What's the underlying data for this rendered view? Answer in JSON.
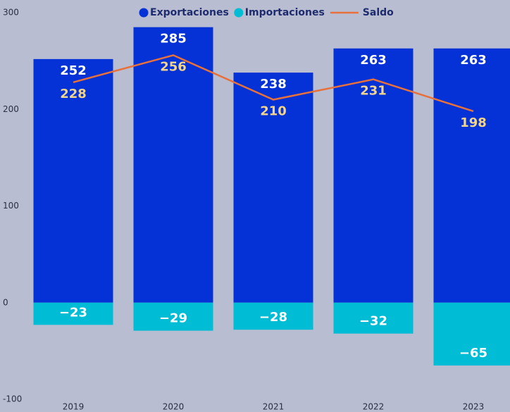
{
  "chart_data": {
    "type": "bar",
    "categories": [
      "2019",
      "2020",
      "2021",
      "2022",
      "2023"
    ],
    "series": [
      {
        "name": "Exportaciones",
        "type": "bar",
        "color": "#0432d6",
        "values": [
          252,
          285,
          238,
          263,
          263
        ]
      },
      {
        "name": "Importaciones",
        "type": "bar",
        "color": "#00bcd4",
        "values": [
          -23,
          -29,
          -28,
          -32,
          -65
        ],
        "value_labels": [
          "−23",
          "−29",
          "−28",
          "−32",
          "−65"
        ]
      },
      {
        "name": "Saldo",
        "type": "line",
        "color": "#e8703a",
        "values": [
          228,
          256,
          210,
          231,
          198
        ]
      }
    ],
    "ylim": [
      -100,
      300
    ],
    "yticks": [
      -100,
      0,
      100,
      200,
      300
    ],
    "legend": "top"
  }
}
